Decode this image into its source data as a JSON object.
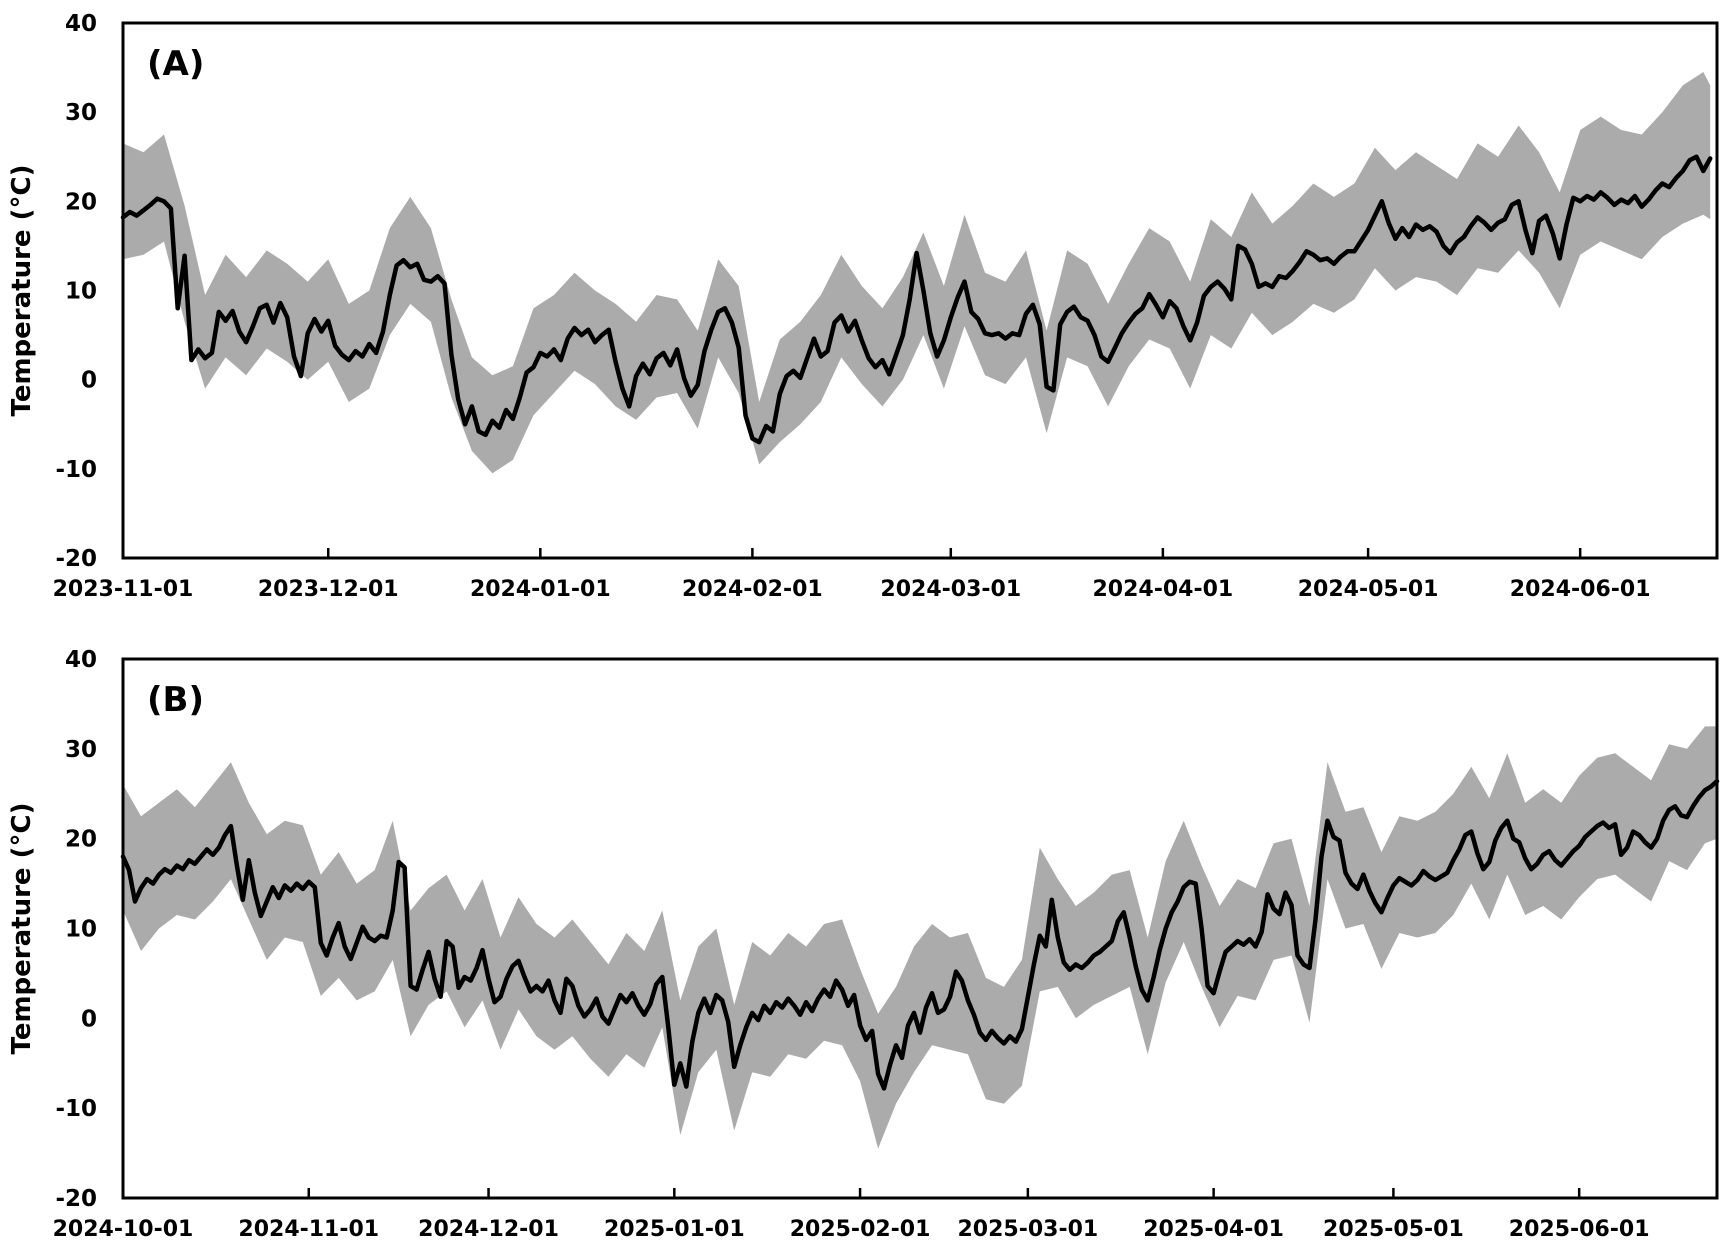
{
  "figure": {
    "background_color": "#FFFFFF",
    "axis_color": "#000000",
    "tick_label_fontweight": "bold"
  },
  "chart_data": [
    {
      "type": "line",
      "panel_label": "(A)",
      "ylabel": "Temperature (°C)",
      "ylim": [
        -20,
        40
      ],
      "yticks": [
        40,
        30,
        20,
        10,
        0,
        -10,
        -20
      ],
      "grid": false,
      "legend": "none",
      "x_tick_labels": [
        "2023-11-01",
        "2023-12-01",
        "2024-01-01",
        "2024-02-01",
        "2024-03-01",
        "2024-04-01",
        "2024-05-01",
        "2024-06-01"
      ],
      "x_tick_days": [
        0,
        30,
        61,
        92,
        121,
        152,
        182,
        213
      ],
      "x_total_days": 233,
      "series": [
        {
          "name": "daily mean temperature",
          "color": "#000000",
          "width": 4.5
        },
        {
          "name": "daily min-max range band",
          "color": "#ABABAB"
        }
      ],
      "mean_start_day": 0,
      "mean_step_days": 1,
      "mean": [
        18.2,
        18.8,
        18.4,
        19.0,
        19.6,
        20.3,
        20.0,
        19.2,
        8.0,
        13.9,
        2.2,
        3.4,
        2.4,
        3.0,
        7.6,
        6.6,
        7.7,
        5.4,
        4.2,
        6.0,
        8.0,
        8.4,
        6.4,
        8.6,
        7.0,
        2.6,
        0.4,
        5.2,
        6.8,
        5.4,
        6.6,
        3.8,
        2.8,
        2.2,
        3.2,
        2.6,
        4.0,
        3.0,
        5.4,
        9.5,
        12.8,
        13.4,
        12.6,
        13.0,
        11.2,
        11.0,
        11.6,
        10.8,
        2.8,
        -2.2,
        -5.0,
        -3.0,
        -5.8,
        -6.2,
        -4.6,
        -5.4,
        -3.4,
        -4.4,
        -2.0,
        0.8,
        1.4,
        3.0,
        2.6,
        3.4,
        2.2,
        4.6,
        5.8,
        5.0,
        5.6,
        4.2,
        5.0,
        5.6,
        2.0,
        -1.0,
        -3.0,
        0.4,
        1.8,
        0.6,
        2.4,
        3.0,
        1.6,
        3.4,
        0.2,
        -1.8,
        -0.6,
        3.2,
        5.6,
        7.6,
        8.0,
        6.4,
        3.6,
        -4.0,
        -6.6,
        -7.0,
        -5.2,
        -5.8,
        -1.6,
        0.4,
        1.0,
        0.2,
        2.4,
        4.6,
        2.6,
        3.2,
        6.4,
        7.2,
        5.4,
        6.6,
        4.4,
        2.4,
        1.4,
        2.2,
        0.6,
        2.8,
        5.0,
        9.0,
        14.2,
        10.0,
        5.2,
        2.6,
        4.4,
        7.0,
        9.2,
        11.0,
        7.6,
        6.8,
        5.2,
        5.0,
        5.2,
        4.6,
        5.2,
        5.0,
        7.4,
        8.4,
        6.2,
        -0.8,
        -1.2,
        6.2,
        7.6,
        8.2,
        7.0,
        6.6,
        5.0,
        2.6,
        2.0,
        3.6,
        5.2,
        6.4,
        7.4,
        8.0,
        9.6,
        8.4,
        7.0,
        8.8,
        8.0,
        6.0,
        4.4,
        6.4,
        9.4,
        10.4,
        11.0,
        10.2,
        9.0,
        15.0,
        14.6,
        13.0,
        10.4,
        10.8,
        10.4,
        11.6,
        11.4,
        12.2,
        13.2,
        14.4,
        14.0,
        13.4,
        13.6,
        13.0,
        13.8,
        14.4,
        14.4,
        15.6,
        16.8,
        18.4,
        20.0,
        17.6,
        15.8,
        17.0,
        16.0,
        17.4,
        16.8,
        17.2,
        16.6,
        15.0,
        14.2,
        15.4,
        16.0,
        17.2,
        18.2,
        17.6,
        16.8,
        17.6,
        18.0,
        19.6,
        20.0,
        16.8,
        14.2,
        17.8,
        18.4,
        16.4,
        13.6,
        17.4,
        20.4,
        20.0,
        20.6,
        20.2,
        21.0,
        20.4,
        19.6,
        20.2,
        19.8,
        20.6,
        19.4,
        20.2,
        21.2,
        22.0,
        21.6,
        22.6,
        23.4,
        24.6,
        25.0,
        23.4,
        24.8
      ],
      "band_days": [
        0,
        3,
        6,
        9,
        12,
        15,
        18,
        21,
        24,
        27,
        30,
        33,
        36,
        39,
        42,
        45,
        48,
        51,
        54,
        57,
        60,
        63,
        66,
        69,
        72,
        75,
        78,
        81,
        84,
        87,
        90,
        93,
        96,
        99,
        102,
        105,
        108,
        111,
        114,
        117,
        120,
        123,
        126,
        129,
        132,
        135,
        138,
        141,
        144,
        147,
        150,
        153,
        156,
        159,
        162,
        165,
        168,
        171,
        174,
        177,
        180,
        183,
        186,
        189,
        192,
        195,
        198,
        201,
        204,
        207,
        210,
        213,
        216,
        219,
        222,
        225,
        228,
        231,
        232
      ],
      "band_upper": [
        26.5,
        25.5,
        27.5,
        19.5,
        9.5,
        14,
        11.5,
        14.5,
        13,
        11,
        13.5,
        8.5,
        10,
        17,
        20.5,
        17,
        9,
        2.5,
        0.5,
        1.5,
        8,
        9.5,
        12,
        10,
        8.5,
        6.5,
        9.5,
        9,
        5.5,
        13.5,
        10.5,
        -2.5,
        4.5,
        6.5,
        9.5,
        14,
        10.5,
        8,
        11.5,
        16.5,
        10.5,
        18.5,
        12,
        11,
        14.5,
        5.5,
        14.5,
        13,
        8.5,
        13,
        17,
        15.5,
        11,
        18,
        16,
        21,
        17.5,
        19.5,
        22,
        20.5,
        22,
        26,
        23.5,
        25.5,
        24,
        22.5,
        26.5,
        25,
        28.5,
        25.5,
        21,
        28,
        29.5,
        28,
        27.5,
        30,
        33,
        34.5,
        33
      ],
      "band_lower": [
        13.5,
        14,
        15.5,
        6.5,
        -1,
        2.5,
        0.5,
        3.5,
        2,
        0,
        2,
        -2.5,
        -1,
        5,
        8.5,
        6.5,
        -2,
        -8,
        -10.5,
        -9,
        -4,
        -1.5,
        1,
        -0.5,
        -3,
        -4.5,
        -2,
        -1.5,
        -5.5,
        2.5,
        -1.5,
        -9.5,
        -7,
        -5,
        -2.5,
        2.5,
        -0.5,
        -3,
        0,
        5,
        -1,
        6,
        0.5,
        -0.5,
        2.5,
        -6,
        2.5,
        1.5,
        -3,
        1.5,
        4.5,
        3.5,
        -1,
        5,
        3.5,
        7.5,
        5,
        6.5,
        8.5,
        7.5,
        9,
        12.5,
        10,
        11.5,
        11,
        9.5,
        12.5,
        12,
        14.5,
        12,
        8,
        14,
        15.5,
        14.5,
        13.5,
        16,
        17.5,
        18.5,
        18
      ]
    },
    {
      "type": "line",
      "panel_label": "(B)",
      "ylabel": "Temperature (°C)",
      "ylim": [
        -20,
        40
      ],
      "yticks": [
        40,
        30,
        20,
        10,
        0,
        -10,
        -20
      ],
      "grid": false,
      "legend": "none",
      "x_tick_labels": [
        "2024-10-01",
        "2024-11-01",
        "2024-12-01",
        "2025-01-01",
        "2025-02-01",
        "2025-03-01",
        "2025-04-01",
        "2025-05-01",
        "2025-06-01"
      ],
      "x_tick_days": [
        0,
        31,
        61,
        92,
        123,
        151,
        182,
        212,
        243
      ],
      "x_total_days": 266,
      "series": [
        {
          "name": "daily mean temperature",
          "color": "#000000",
          "width": 4.5
        },
        {
          "name": "daily min-max range band",
          "color": "#ABABAB"
        }
      ],
      "mean_start_day": 0,
      "mean_step_days": 1,
      "mean": [
        18.0,
        16.5,
        13.0,
        14.5,
        15.5,
        15.0,
        16.0,
        16.6,
        16.2,
        17.0,
        16.6,
        17.6,
        17.2,
        18.0,
        18.8,
        18.2,
        19.0,
        20.4,
        21.4,
        17.0,
        13.2,
        17.6,
        14.0,
        11.4,
        13.0,
        14.6,
        13.4,
        14.8,
        14.2,
        15.0,
        14.4,
        15.2,
        14.6,
        8.4,
        7.0,
        9.0,
        10.6,
        8.0,
        6.6,
        8.4,
        10.2,
        9.0,
        8.6,
        9.2,
        9.0,
        12.0,
        17.4,
        16.8,
        3.6,
        3.2,
        5.4,
        7.4,
        4.4,
        2.4,
        8.6,
        8.0,
        3.4,
        4.6,
        4.2,
        5.6,
        7.6,
        4.4,
        1.8,
        2.4,
        4.4,
        5.8,
        6.4,
        4.6,
        3.0,
        3.6,
        3.0,
        4.2,
        2.0,
        0.6,
        4.4,
        3.6,
        1.4,
        0.2,
        1.0,
        2.2,
        0.2,
        -0.6,
        1.0,
        2.6,
        1.8,
        2.8,
        1.4,
        0.4,
        1.6,
        3.8,
        4.6,
        -1.0,
        -7.4,
        -5.0,
        -7.6,
        -2.6,
        0.6,
        2.2,
        0.6,
        2.6,
        2.0,
        -0.4,
        -5.4,
        -3.0,
        -1.0,
        0.6,
        -0.2,
        1.4,
        0.6,
        1.8,
        1.2,
        2.2,
        1.4,
        0.4,
        1.8,
        0.8,
        2.2,
        3.2,
        2.4,
        4.2,
        3.2,
        1.4,
        2.6,
        -0.8,
        -2.4,
        -1.4,
        -6.2,
        -7.8,
        -5.2,
        -3.0,
        -4.4,
        -0.8,
        0.6,
        -1.6,
        1.2,
        2.8,
        0.6,
        1.0,
        2.4,
        5.2,
        4.2,
        2.0,
        0.4,
        -1.6,
        -2.4,
        -1.4,
        -2.2,
        -2.8,
        -2.0,
        -2.6,
        -1.2,
        2.4,
        6.0,
        9.2,
        8.0,
        13.2,
        9.0,
        6.2,
        5.4,
        6.0,
        5.6,
        6.2,
        7.0,
        7.4,
        8.0,
        8.6,
        10.8,
        11.8,
        9.0,
        5.8,
        3.2,
        2.0,
        4.6,
        7.6,
        10.0,
        11.8,
        13.0,
        14.6,
        15.2,
        15.0,
        10.0,
        3.6,
        2.8,
        5.2,
        7.4,
        8.0,
        8.6,
        8.2,
        8.8,
        8.0,
        9.6,
        13.8,
        12.2,
        11.6,
        14.0,
        12.6,
        7.0,
        6.0,
        5.6,
        11.0,
        18.0,
        22.0,
        20.2,
        19.8,
        16.2,
        15.0,
        14.4,
        16.0,
        14.2,
        12.8,
        11.8,
        13.4,
        14.8,
        15.6,
        15.2,
        14.8,
        15.4,
        16.4,
        15.8,
        15.4,
        15.8,
        16.2,
        17.6,
        18.8,
        20.4,
        20.8,
        18.4,
        16.6,
        17.4,
        19.8,
        21.2,
        22.0,
        20.0,
        19.6,
        17.8,
        16.6,
        17.2,
        18.2,
        18.6,
        17.6,
        17.0,
        17.8,
        18.6,
        19.2,
        20.2,
        20.8,
        21.4,
        21.8,
        21.2,
        21.6,
        18.2,
        19.0,
        20.8,
        20.4,
        19.6,
        19.0,
        20.0,
        22.0,
        23.2,
        23.6,
        22.6,
        22.4,
        23.6,
        24.6,
        25.4,
        25.8,
        26.4
      ],
      "band_days": [
        0,
        3,
        6,
        9,
        12,
        15,
        18,
        21,
        24,
        27,
        30,
        33,
        36,
        39,
        42,
        45,
        48,
        51,
        54,
        57,
        60,
        63,
        66,
        69,
        72,
        75,
        78,
        81,
        84,
        87,
        90,
        93,
        96,
        99,
        102,
        105,
        108,
        111,
        114,
        117,
        120,
        123,
        126,
        129,
        132,
        135,
        138,
        141,
        144,
        147,
        150,
        153,
        156,
        159,
        162,
        165,
        168,
        171,
        174,
        177,
        180,
        183,
        186,
        189,
        192,
        195,
        198,
        201,
        204,
        207,
        210,
        213,
        216,
        219,
        222,
        225,
        228,
        231,
        234,
        237,
        240,
        243,
        246,
        249,
        252,
        255,
        258,
        261,
        264,
        266
      ],
      "band_upper": [
        26,
        22.5,
        24,
        25.5,
        23.5,
        26,
        28.5,
        24,
        20.5,
        22,
        21.5,
        16,
        18.5,
        15,
        16.5,
        22,
        12,
        14.5,
        16,
        12,
        15.5,
        9,
        13.5,
        10.5,
        9,
        11,
        8.5,
        6,
        9.5,
        7.5,
        12,
        2,
        8,
        10,
        1.5,
        8.5,
        7,
        9.5,
        8,
        10.5,
        11,
        5.5,
        0.5,
        3.5,
        8,
        10.5,
        9,
        9.5,
        4.5,
        3.5,
        6.5,
        19,
        15.5,
        12.5,
        14,
        16,
        16.5,
        9,
        17.5,
        22,
        17,
        12.5,
        15.5,
        14.5,
        19.5,
        20,
        12.5,
        28.5,
        23,
        23.5,
        18.5,
        22.5,
        22,
        23,
        25,
        28,
        24.5,
        29.5,
        24,
        25.5,
        24,
        27,
        29,
        29.5,
        28,
        26.5,
        30.5,
        30,
        32.5,
        32.5
      ],
      "band_lower": [
        12,
        7.5,
        10,
        11.5,
        11,
        13,
        15.5,
        11,
        6.5,
        9,
        8.5,
        2.5,
        4.5,
        2,
        3,
        6.5,
        -2,
        1.5,
        3,
        -1,
        2,
        -3.5,
        1,
        -2,
        -3.5,
        -2,
        -4.5,
        -6.5,
        -4,
        -5.5,
        -1,
        -13,
        -6,
        -3.5,
        -12.5,
        -6,
        -6.5,
        -4,
        -4.5,
        -2.5,
        -3,
        -7,
        -14.5,
        -9.5,
        -6,
        -3,
        -3.5,
        -4,
        -9,
        -9.5,
        -7.5,
        3,
        3.5,
        0,
        1.5,
        2.5,
        3.5,
        -4,
        4,
        8.5,
        3.5,
        -1,
        2.5,
        2,
        6.5,
        7,
        -0.5,
        15.5,
        10,
        10.5,
        5.5,
        9.5,
        9,
        9.5,
        11.5,
        15,
        11,
        16,
        11.5,
        12.5,
        11,
        13.5,
        15.5,
        16,
        14.5,
        13,
        17.5,
        16.5,
        19.5,
        20
      ]
    }
  ]
}
